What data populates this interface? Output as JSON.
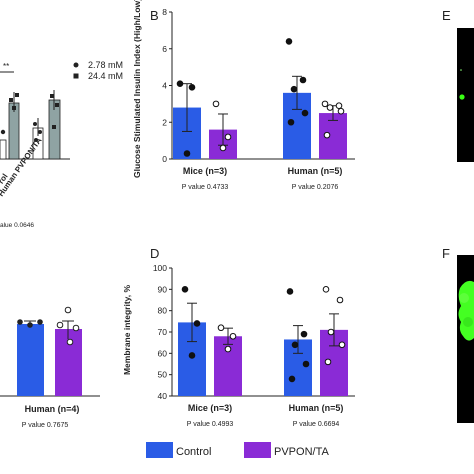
{
  "figure": {
    "panel_letters": {
      "b": "B",
      "d": "D",
      "e": "E",
      "f": "F"
    },
    "panel_a_fragment": {
      "legend": [
        {
          "marker": "circle",
          "label": "2.78 mM"
        },
        {
          "marker": "square",
          "label": "24.4 mM"
        }
      ],
      "significance": "**",
      "tick_fragments": [
        "rol",
        "Human PVPON/TA"
      ],
      "pvalue_fragment": "alue 0.0646"
    },
    "panel_c_fragment": {
      "group_label": "Human (n=4)",
      "pvalue": "P value 0.7675"
    },
    "legend": [
      {
        "name": "Control",
        "color": "#2a5ce6"
      },
      {
        "name": "PVPON/TA",
        "color": "#8a2bd6"
      }
    ],
    "colors": {
      "control": "#2a5ce6",
      "pvpon": "#8a2bd6",
      "panel_a_bar": "#8fa3a3",
      "dark_panel": "#000000",
      "fluorescence": "#39ff14"
    }
  },
  "chart_data": [
    {
      "panel": "B",
      "type": "bar",
      "ylabel": "Glucose Stimulated Insulin Index (High/Low)",
      "ylim": [
        0,
        8
      ],
      "yticks": [
        0,
        2,
        4,
        6,
        8
      ],
      "categories": [
        "Mice (n=3)",
        "Human (n=5)"
      ],
      "pvalues": [
        "P value 0.4733",
        "P value 0.2076"
      ],
      "series": [
        {
          "name": "Control",
          "values": [
            2.8,
            3.6
          ],
          "sem": [
            1.3,
            0.9
          ],
          "points": [
            [
              4.1,
              3.9,
              0.3
            ],
            [
              6.4,
              4.3,
              3.8,
              2.5,
              2.0
            ]
          ]
        },
        {
          "name": "PVPON/TA",
          "values": [
            1.6,
            2.5
          ],
          "sem": [
            0.85,
            0.4
          ],
          "points": [
            [
              3.0,
              1.2,
              0.6
            ],
            [
              3.0,
              2.9,
              2.8,
              2.6,
              1.3
            ]
          ]
        }
      ]
    },
    {
      "panel": "D",
      "type": "bar",
      "ylabel": "Membrane integrity, %",
      "ylim": [
        40,
        100
      ],
      "yticks": [
        40,
        50,
        60,
        70,
        80,
        90,
        100
      ],
      "categories": [
        "Mice (n=3)",
        "Human (n=5)"
      ],
      "pvalues": [
        "P value 0.4993",
        "P value 0.6694"
      ],
      "series": [
        {
          "name": "Control",
          "values": [
            74.5,
            66.5
          ],
          "sem": [
            9.0,
            6.5
          ],
          "points": [
            [
              90,
              74,
              59
            ],
            [
              89,
              69,
              64,
              55,
              48
            ]
          ]
        },
        {
          "name": "PVPON/TA",
          "values": [
            68,
            71
          ],
          "sem": [
            3.8,
            7.5
          ],
          "points": [
            [
              72,
              68,
              62
            ],
            [
              90,
              85,
              70,
              64,
              56
            ]
          ]
        }
      ]
    }
  ]
}
